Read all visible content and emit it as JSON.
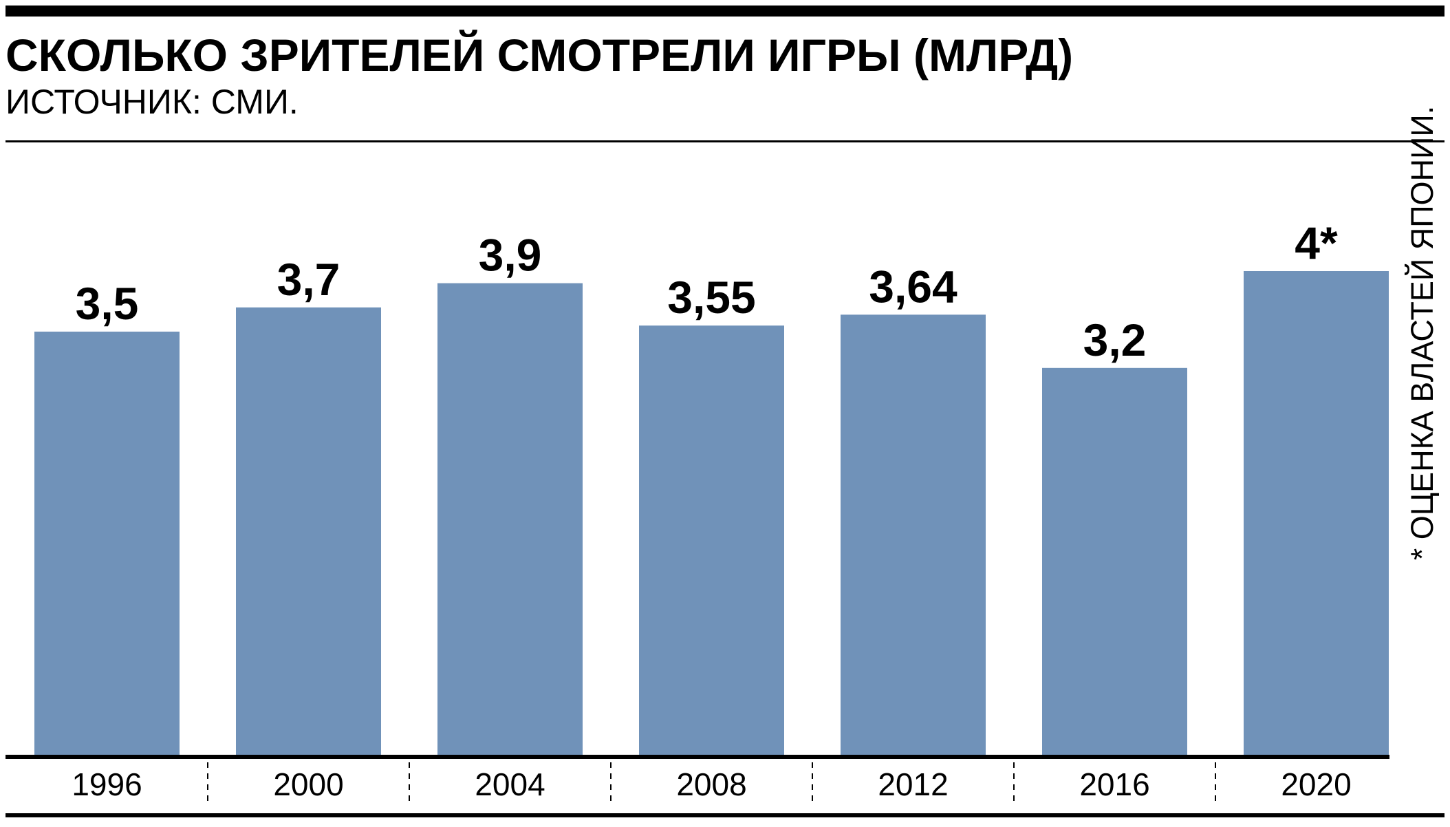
{
  "header": {
    "title": "СКОЛЬКО ЗРИТЕЛЕЙ СМОТРЕЛИ ИГРЫ (МЛРД)",
    "subtitle": "ИСТОЧНИК: СМИ."
  },
  "footnote": "* ОЦЕНКА ВЛАСТЕЙ ЯПОНИИ.",
  "colors": {
    "bar": "#7092b9",
    "text": "#000000",
    "background": "#ffffff"
  },
  "chart_data": {
    "type": "bar",
    "title": "СКОЛЬКО ЗРИТЕЛЕЙ СМОТРЕЛИ ИГРЫ (МЛРД)",
    "subtitle": "ИСТОЧНИК: СМИ.",
    "categories": [
      "1996",
      "2000",
      "2004",
      "2008",
      "2012",
      "2016",
      "2020"
    ],
    "values": [
      3.5,
      3.7,
      3.9,
      3.55,
      3.64,
      3.2,
      4
    ],
    "value_labels": [
      "3,5",
      "3,7",
      "3,9",
      "3,55",
      "3,64",
      "3,2",
      "4*"
    ],
    "ylim": [
      0,
      4.2
    ],
    "grid": false,
    "legend": "none",
    "annotations": [
      "* ОЦЕНКА ВЛАСТЕЙ ЯПОНИИ."
    ]
  }
}
